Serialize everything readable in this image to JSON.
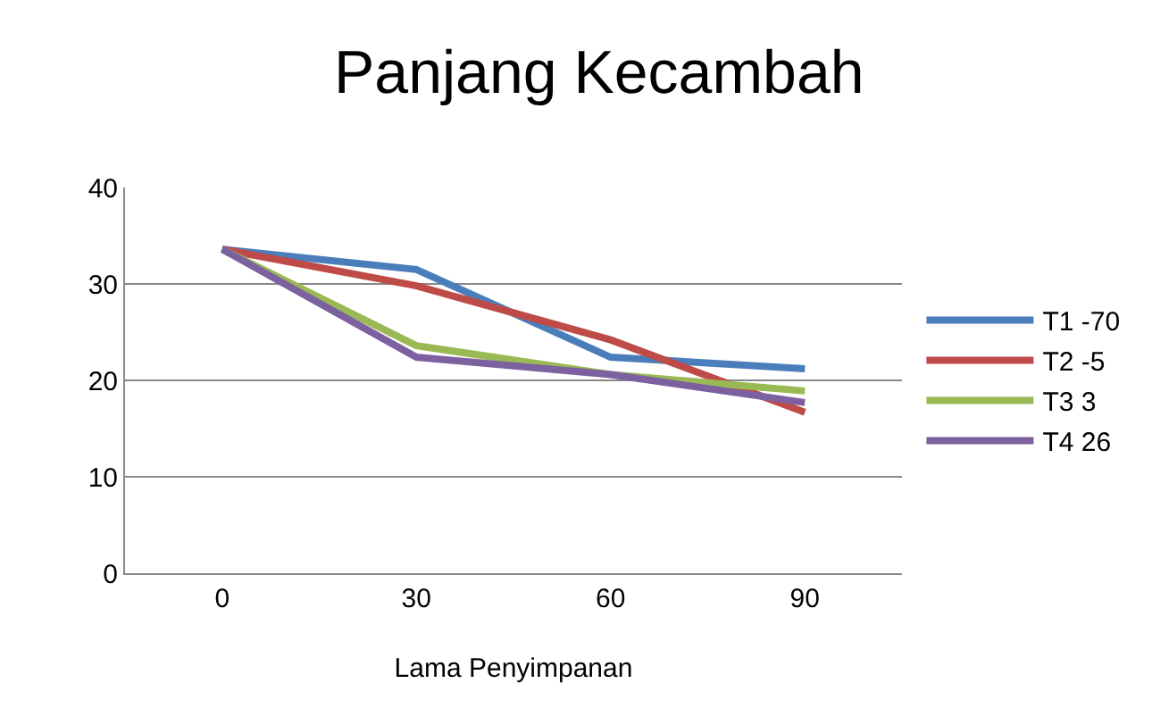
{
  "chart_data": {
    "type": "line",
    "title": "Panjang Kecambah",
    "xlabel": "Lama Penyimpanan",
    "categories": [
      "0",
      "30",
      "60",
      "90"
    ],
    "series": [
      {
        "name": "T1 -70",
        "color": "#4a7ebb",
        "values": [
          33.6,
          31.5,
          22.4,
          21.2
        ]
      },
      {
        "name": "T2 -5",
        "color": "#be4b48",
        "values": [
          33.6,
          29.8,
          24.2,
          16.7
        ]
      },
      {
        "name": "T3 3",
        "color": "#98b954",
        "values": [
          33.6,
          23.6,
          20.6,
          18.9
        ]
      },
      {
        "name": "T4 26",
        "color": "#7d60a0",
        "values": [
          33.6,
          22.4,
          20.6,
          17.7
        ]
      }
    ],
    "ylim": [
      0,
      40
    ],
    "yticks": [
      0,
      10,
      20,
      30,
      40
    ],
    "grid": "y",
    "legend": "right",
    "marker": "none",
    "line_style": "solid"
  }
}
